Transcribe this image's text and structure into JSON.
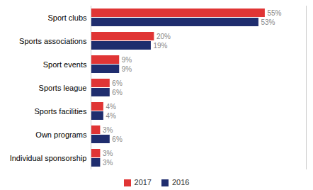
{
  "chart_data": {
    "type": "bar",
    "orientation": "horizontal",
    "categories": [
      "Sport clubs",
      "Sports associations",
      "Sport events",
      "Sports league",
      "Sports facilities",
      "Own programs",
      "Individual sponsorship"
    ],
    "series": [
      {
        "name": "2017",
        "color": "#e03535",
        "values": [
          55,
          20,
          9,
          6,
          4,
          3,
          3
        ],
        "value_labels": [
          "55%",
          "20%",
          "9%",
          "6%",
          "4%",
          "3%",
          "3%"
        ]
      },
      {
        "name": "2016",
        "color": "#1f2d6e",
        "values": [
          53,
          19,
          9,
          6,
          4,
          6,
          3
        ],
        "value_labels": [
          "53%",
          "19%",
          "9%",
          "6%",
          "4%",
          "6%",
          "3%"
        ]
      }
    ],
    "xlim": [
      0,
      68
    ],
    "data_labels": true,
    "tick_labels": "y",
    "legend": "bottom"
  }
}
